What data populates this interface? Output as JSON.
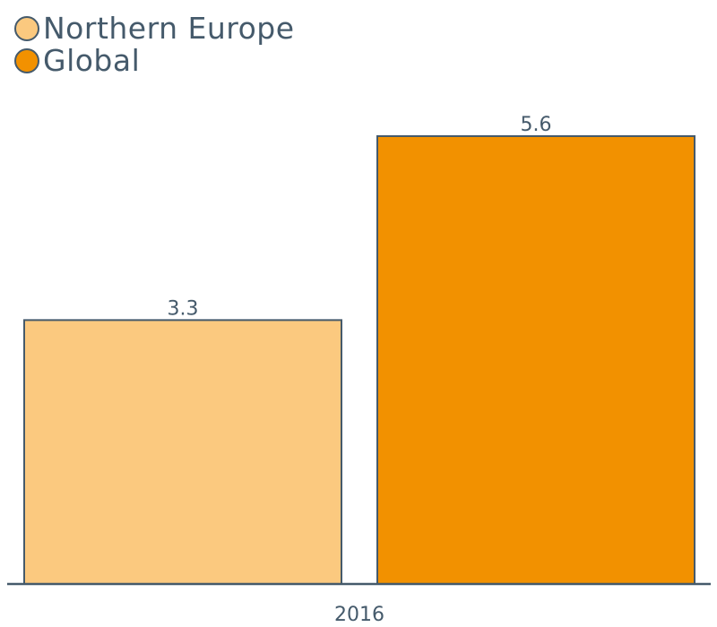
{
  "chart_data": {
    "type": "bar",
    "categories": [
      "2016"
    ],
    "series": [
      {
        "name": "Northern Europe",
        "values": [
          3.3
        ],
        "color": "#fbc97f"
      },
      {
        "name": "Global",
        "values": [
          5.6
        ],
        "color": "#f29100"
      }
    ],
    "ylim": [
      0,
      5.6
    ],
    "grid": false,
    "legend_position": "top-left",
    "axis_color": "#455a6b"
  }
}
